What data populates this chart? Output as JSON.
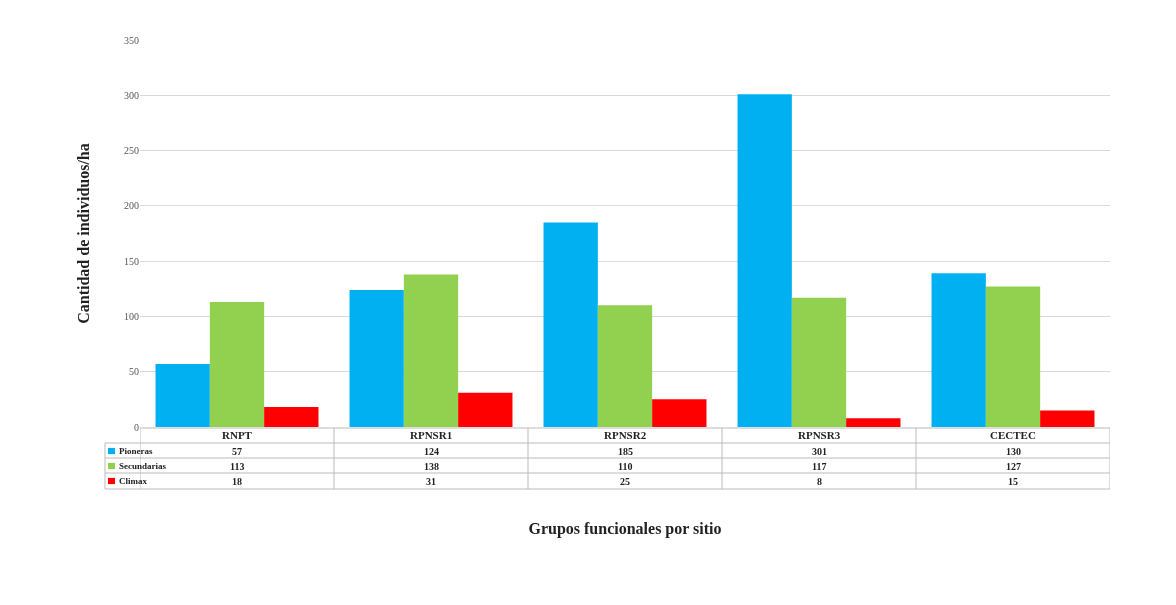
{
  "chart_data": {
    "type": "bar",
    "xlabel": "Grupos funcionales por sitio",
    "ylabel": "Cantidad de individuos/ha",
    "categories": [
      "RNPT",
      "RPNSR1",
      "RPNSR2",
      "RPNSR3",
      "CECTEC"
    ],
    "series": [
      {
        "name": "Pioneras",
        "color": "#00b0f0",
        "values": [
          57,
          124,
          185,
          301,
          139
        ]
      },
      {
        "name": "Secundarias",
        "color": "#92d050",
        "values": [
          113,
          138,
          110,
          117,
          127
        ]
      },
      {
        "name": "Climax",
        "color": "#ff0000",
        "values": [
          18,
          31,
          25,
          8,
          15
        ]
      }
    ],
    "value_labels": [
      [
        "57",
        "124",
        "185",
        "301",
        "130"
      ],
      [
        "113",
        "138",
        "110",
        "117",
        "127"
      ],
      [
        "18",
        "31",
        "25",
        "8",
        "15"
      ]
    ],
    "ylim": [
      0,
      350
    ],
    "yticks": [
      0,
      50,
      100,
      150,
      200,
      250,
      300,
      350
    ],
    "grid": "y",
    "legend": "bottom left"
  }
}
